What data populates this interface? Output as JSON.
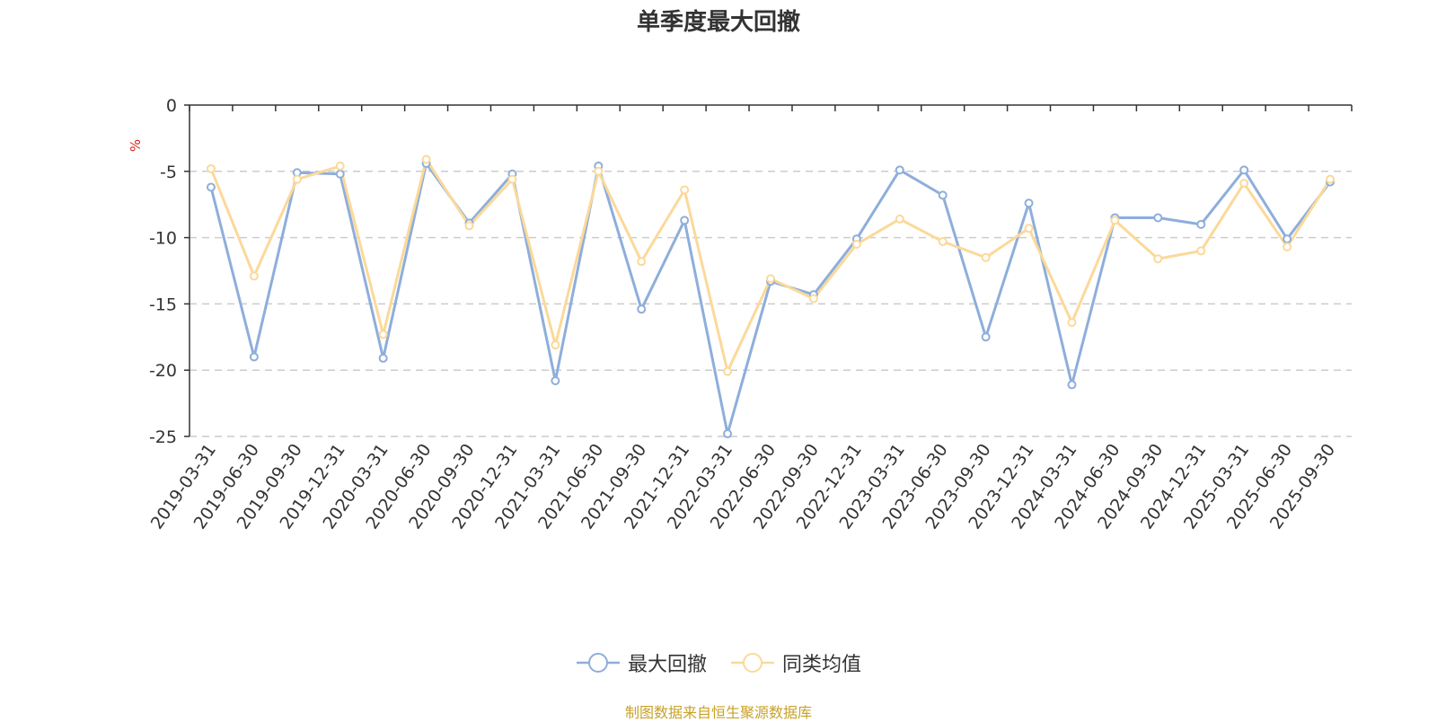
{
  "chart_data": {
    "type": "line",
    "title": "单季度最大回撤",
    "ylabel": "%",
    "ylim": [
      -25,
      0
    ],
    "yticks": [
      0,
      -5,
      -10,
      -15,
      -20,
      -25
    ],
    "grid": true,
    "legend_position": "bottom-center",
    "categories": [
      "2019-03-31",
      "2019-06-30",
      "2019-09-30",
      "2019-12-31",
      "2020-03-31",
      "2020-06-30",
      "2020-09-30",
      "2020-12-31",
      "2021-03-31",
      "2021-06-30",
      "2021-09-30",
      "2021-12-31",
      "2022-03-31",
      "2022-06-30",
      "2022-09-30",
      "2022-12-31",
      "2023-03-31",
      "2023-06-30",
      "2023-09-30",
      "2023-12-31",
      "2024-03-31",
      "2024-06-30",
      "2024-09-30",
      "2024-12-31",
      "2025-03-31",
      "2025-06-30",
      "2025-09-30"
    ],
    "series": [
      {
        "name": "最大回撤",
        "color": "#8eaedb",
        "values": [
          -6.2,
          -19.0,
          -5.1,
          -5.2,
          -19.1,
          -4.4,
          -8.9,
          -5.2,
          -20.8,
          -4.6,
          -15.4,
          -8.7,
          -24.8,
          -13.3,
          -14.3,
          -10.1,
          -4.9,
          -6.8,
          -17.5,
          -7.4,
          -21.1,
          -8.5,
          -8.5,
          -9.0,
          -4.9,
          -10.1,
          -5.8
        ]
      },
      {
        "name": "同类均值",
        "color": "#fbd99a",
        "values": [
          -4.8,
          -12.9,
          -5.6,
          -4.6,
          -17.3,
          -4.1,
          -9.1,
          -5.6,
          -18.1,
          -5.0,
          -11.8,
          -6.4,
          -20.1,
          -13.1,
          -14.6,
          -10.5,
          -8.6,
          -10.3,
          -11.5,
          -9.3,
          -16.4,
          -8.7,
          -11.6,
          -11.0,
          -5.9,
          -10.7,
          -5.6
        ]
      }
    ]
  },
  "source_note": "制图数据来自恒生聚源数据库"
}
